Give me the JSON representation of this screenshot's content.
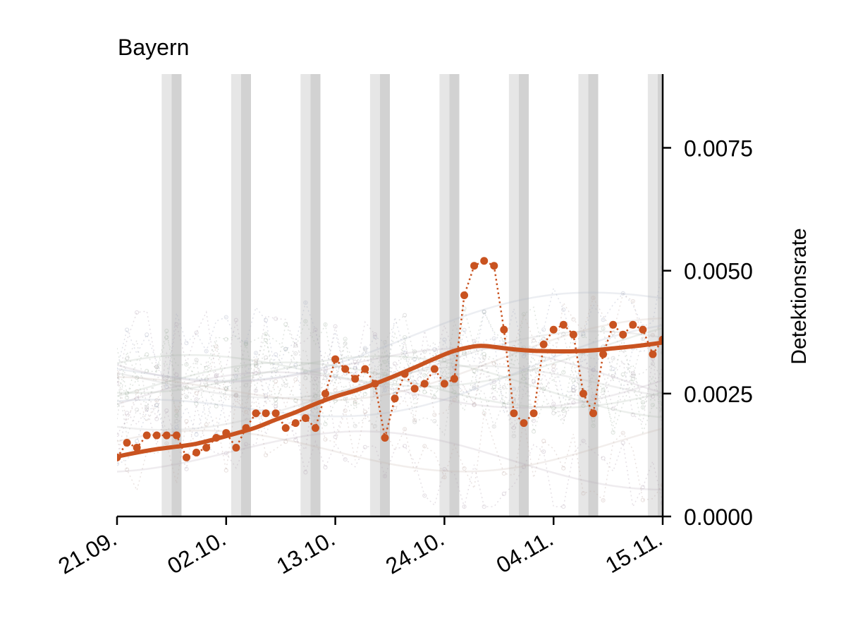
{
  "chart_data": {
    "type": "line",
    "title": "Bayern",
    "xlabel": "",
    "ylabel": "Detektionsrate",
    "x_tick_labels": [
      "21.09.",
      "02.10.",
      "13.10.",
      "24.10.",
      "04.11.",
      "15.11."
    ],
    "x_tick_days": [
      0,
      11,
      22,
      33,
      44,
      55
    ],
    "xlim": [
      0,
      55
    ],
    "y_ticks": [
      "0.0000",
      "0.0025",
      "0.0050",
      "0.0075"
    ],
    "y_tick_values": [
      0,
      0.0025,
      0.005,
      0.0075
    ],
    "ylim": [
      0,
      0.009
    ],
    "y_axis_side": "right",
    "grid": false,
    "weekend_bands": [
      [
        4.5,
        6.5
      ],
      [
        11.5,
        13.5
      ],
      [
        18.5,
        20.5
      ],
      [
        25.5,
        27.5
      ],
      [
        32.5,
        34.5
      ],
      [
        39.5,
        41.5
      ],
      [
        46.5,
        48.5
      ],
      [
        53.5,
        55.5
      ]
    ],
    "colors": {
      "series": "#c95320",
      "weekend_light": "#e6e6e6",
      "weekend_dark": "#d2d2d2",
      "background_lines": [
        "#b8a9b8",
        "#a9b8a9",
        "#c4b0a8",
        "#a8b0c4",
        "#b4b4b4"
      ]
    },
    "series": [
      {
        "role": "daily",
        "x": [
          0,
          1,
          2,
          3,
          4,
          5,
          6,
          7,
          8,
          9,
          10,
          11,
          12,
          13,
          14,
          15,
          16,
          17,
          18,
          19,
          20,
          21,
          22,
          23,
          24,
          25,
          26,
          27,
          28,
          29,
          30,
          31,
          32,
          33,
          34,
          35,
          36,
          37,
          38,
          39,
          40,
          41,
          42,
          43,
          44,
          45,
          46,
          47,
          48,
          49,
          50,
          51,
          52,
          53,
          54,
          55
        ],
        "y": [
          0.0012,
          0.0015,
          0.0014,
          0.00165,
          0.00165,
          0.00165,
          0.00165,
          0.0012,
          0.0013,
          0.0014,
          0.0016,
          0.0017,
          0.0014,
          0.0018,
          0.0021,
          0.0021,
          0.0021,
          0.0018,
          0.0019,
          0.002,
          0.0018,
          0.0025,
          0.0032,
          0.003,
          0.0028,
          0.003,
          0.0027,
          0.0016,
          0.0024,
          0.0029,
          0.0026,
          0.0027,
          0.003,
          0.0027,
          0.0028,
          0.0045,
          0.0051,
          0.0052,
          0.0051,
          0.0038,
          0.0021,
          0.0019,
          0.0021,
          0.0035,
          0.0038,
          0.0039,
          0.0037,
          0.0025,
          0.0021,
          0.0033,
          0.0039,
          0.0037,
          0.0039,
          0.0038,
          0.0033,
          0.0036
        ]
      },
      {
        "role": "trend",
        "x": [
          0,
          2,
          4,
          6,
          8,
          10,
          12,
          14,
          16,
          18,
          20,
          22,
          24,
          26,
          28,
          30,
          32,
          34,
          36,
          37,
          38,
          40,
          42,
          44,
          46,
          48,
          50,
          52,
          54,
          55
        ],
        "y": [
          0.00122,
          0.0013,
          0.00137,
          0.00142,
          0.00148,
          0.00158,
          0.00169,
          0.00181,
          0.00197,
          0.00212,
          0.00229,
          0.00244,
          0.00256,
          0.0027,
          0.00286,
          0.00303,
          0.00321,
          0.00337,
          0.00346,
          0.00347,
          0.00345,
          0.0034,
          0.00337,
          0.00336,
          0.00336,
          0.00338,
          0.00342,
          0.00346,
          0.00351,
          0.00354
        ]
      }
    ]
  }
}
